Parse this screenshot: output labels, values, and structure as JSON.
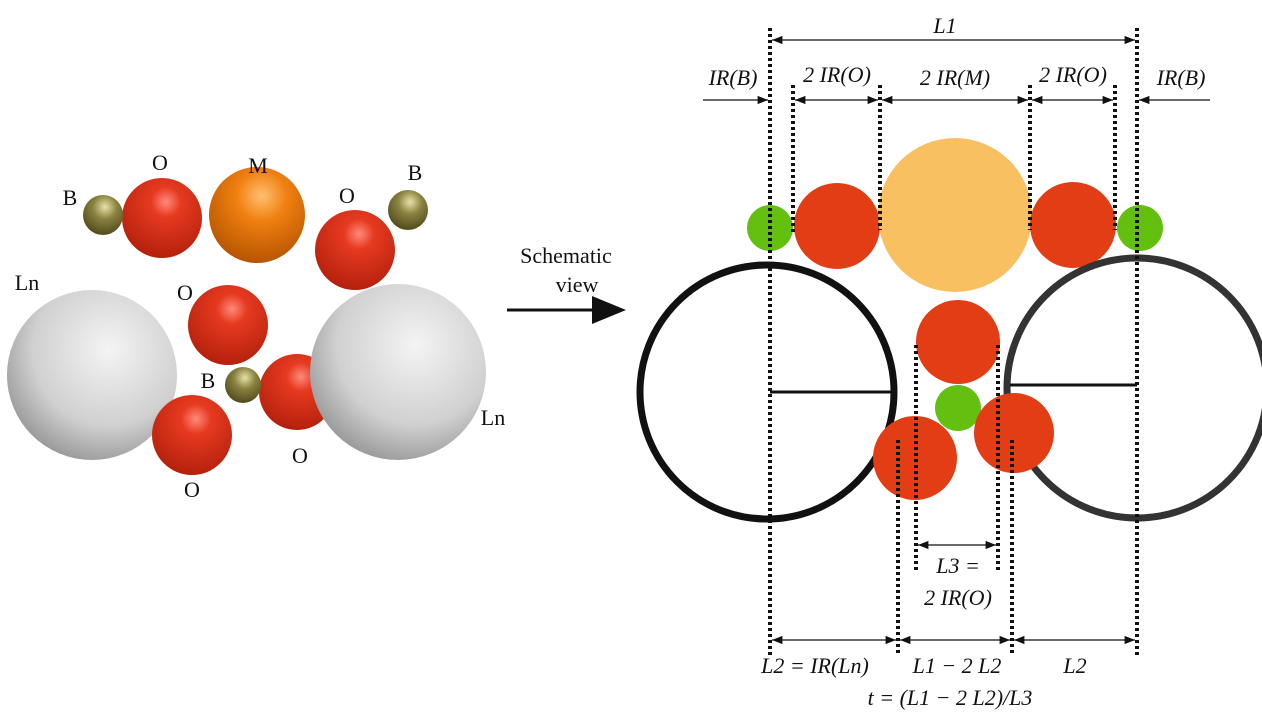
{
  "structure_labels": [
    "B",
    "O",
    "M",
    "O",
    "B",
    "Ln",
    "O",
    "B",
    "O",
    "Ln",
    "O"
  ],
  "arrow_caption": [
    "Schematic",
    "view"
  ],
  "dimensions": {
    "top": [
      "L1",
      "IR(B)",
      "2 IR(O)",
      "2 IR(M)",
      "2 IR(O)",
      "IR(B)"
    ],
    "middle": [
      "L3 =",
      "2 IR(O)"
    ],
    "bottom": [
      "L2 = IR(Ln)",
      "L1 − 2 L2",
      "L2"
    ],
    "formula": "t = (L1 − 2 L2)/L3"
  }
}
